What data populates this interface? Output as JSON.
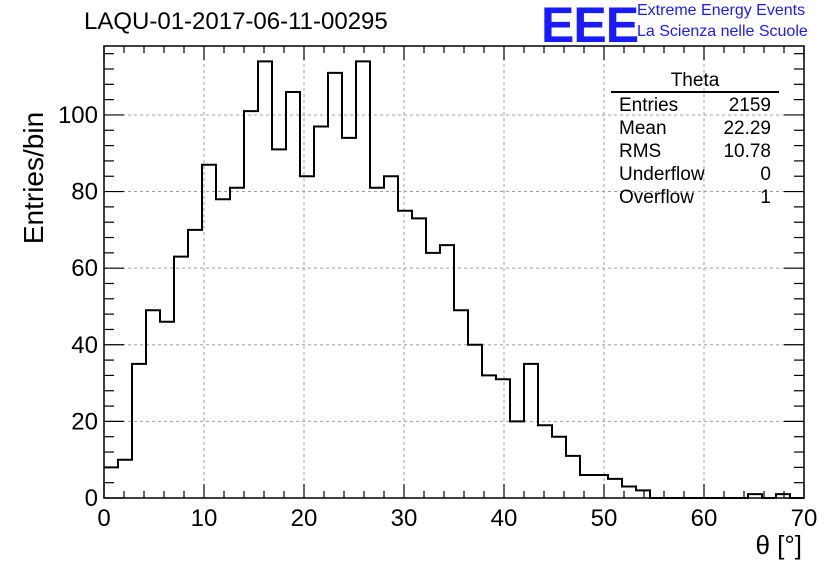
{
  "title": "LAQU-01-2017-06-11-00295",
  "logo": {
    "text": "EEE",
    "line1": "Extreme Energy Events",
    "line2": "La Scienza nelle Scuole",
    "color": "#1a1aff"
  },
  "stats_box": {
    "title": "Theta",
    "rows": [
      {
        "label": "Entries",
        "value": "2159"
      },
      {
        "label": "Mean",
        "value": "22.29"
      },
      {
        "label": "RMS",
        "value": "10.78"
      },
      {
        "label": "Underflow",
        "value": "0"
      },
      {
        "label": "Overflow",
        "value": "1"
      }
    ]
  },
  "chart_data": {
    "type": "histogram",
    "title": "LAQU-01-2017-06-11-00295",
    "xlabel": "θ [°]",
    "ylabel": "Entries/bin",
    "xlim": [
      0,
      70
    ],
    "ylim": [
      0,
      118
    ],
    "bin_width": 1.4,
    "grid": true,
    "x_ticks": [
      0,
      10,
      20,
      30,
      40,
      50,
      60,
      70
    ],
    "y_ticks": [
      0,
      20,
      40,
      60,
      80,
      100
    ],
    "values": [
      8,
      10,
      35,
      49,
      46,
      63,
      70,
      87,
      78,
      81,
      101,
      114,
      91,
      106,
      84,
      97,
      111,
      94,
      114,
      81,
      84,
      75,
      73,
      64,
      66,
      49,
      40,
      32,
      31,
      20,
      35,
      19,
      16,
      11,
      6,
      6,
      5,
      3,
      2,
      0,
      0,
      0,
      0,
      0,
      0,
      0,
      1,
      0,
      1,
      0
    ],
    "line_color": "#000000"
  }
}
